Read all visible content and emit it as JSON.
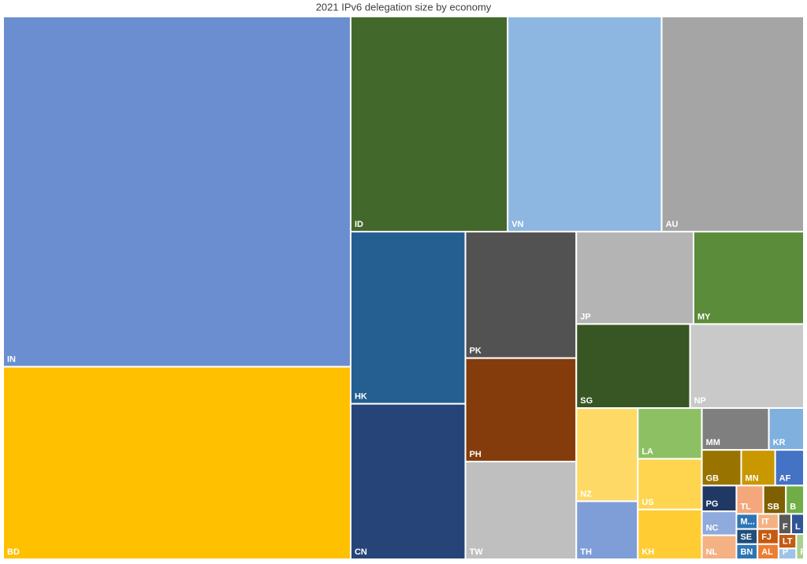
{
  "chart_data": {
    "type": "treemap",
    "title": "2021 IPv6 delegation size by economy",
    "categories": [
      "IN",
      "BD",
      "ID",
      "VN",
      "AU",
      "HK",
      "CN",
      "PK",
      "PH",
      "TW",
      "JP",
      "MY",
      "SG",
      "NP",
      "NZ",
      "TH",
      "LA",
      "US",
      "KH",
      "MM",
      "KR",
      "GB",
      "MN",
      "AF",
      "PG",
      "NC",
      "NL",
      "TL",
      "SB",
      "B",
      "M...",
      "SE",
      "BN",
      "IT",
      "FJ",
      "AL",
      "F",
      "L",
      "LT",
      "P",
      "P"
    ],
    "values": [
      191,
      105,
      53,
      52,
      48,
      31,
      28,
      22,
      18,
      17,
      17,
      16,
      15,
      15,
      9,
      5.6,
      5.1,
      5.1,
      5.0,
      4.4,
      2.3,
      2.2,
      1.9,
      1.6,
      1.4,
      1.3,
      1.3,
      1.2,
      1.0,
      0.8,
      0.5,
      0.5,
      0.5,
      0.5,
      0.5,
      0.5,
      0.4,
      0.4,
      0.4,
      0.3,
      0.3
    ],
    "colors": [
      "#6a8ed0",
      "#ffc000",
      "#43682b",
      "#8db7e0",
      "#a5a5a5",
      "#255e91",
      "#264478",
      "#525252",
      "#843c0c",
      "#bfbfbf",
      "#b4b4b4",
      "#5b8c3a",
      "#375623",
      "#c9c9c9",
      "#ffd966",
      "#7f9ed8",
      "#8dc063",
      "#ffd54f",
      "#ffcd33",
      "#7f7f7f",
      "#7fb0de",
      "#997300",
      "#c99700",
      "#4472c4",
      "#203864",
      "#8faadc",
      "#f4b183",
      "#f4a77a",
      "#7f6000",
      "#70ad47",
      "#2e75b6",
      "#1f4e79",
      "#2e75b6",
      "#f4b183",
      "#c55a11",
      "#ed7d31",
      "#595959",
      "#2f5597",
      "#c55a11",
      "#9dc3e6",
      "#a9d18e"
    ]
  }
}
